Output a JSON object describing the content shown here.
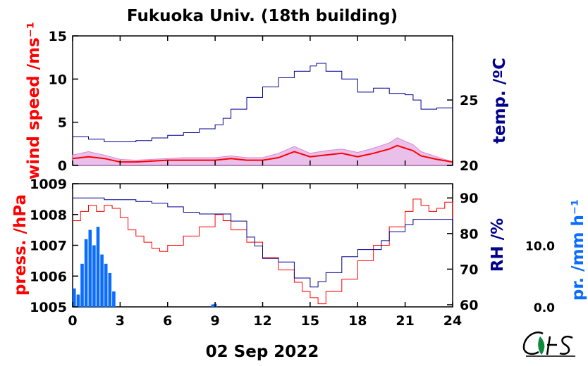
{
  "title": "Fukuoka Univ. (18th building)",
  "date_label": "02 Sep 2022",
  "colors": {
    "wind": "#ff0000",
    "wind_gust": "#d88ad8",
    "temp": "#00008b",
    "press": "#ff0000",
    "rh": "#00008b",
    "precip": "#0a6dff"
  },
  "chart_data": [
    {
      "type": "line",
      "panel": "top",
      "x_range": [
        0,
        24
      ],
      "y_left": {
        "label": "wind speed /ms⁻¹",
        "range": [
          0,
          15
        ],
        "ticks": [
          0,
          5,
          10,
          15
        ],
        "tick_labels": [
          "0",
          "5",
          "10",
          "15"
        ]
      },
      "y_right": {
        "label": "temp. /ºC",
        "range": [
          20,
          29.9
        ],
        "ticks": [
          20,
          25
        ],
        "tick_labels": [
          "20",
          "25"
        ]
      },
      "series": [
        {
          "key": "temp",
          "axis": "right",
          "x": [
            0,
            0.5,
            1,
            2,
            3,
            4,
            5,
            6,
            7,
            8,
            9,
            9.5,
            10,
            11,
            12,
            13,
            14,
            15,
            15.4,
            16,
            17,
            18,
            19,
            20,
            21,
            21.5,
            22,
            22.5,
            23,
            24
          ],
          "y": [
            22.2,
            22.2,
            22.0,
            21.8,
            21.8,
            21.9,
            22.1,
            22.3,
            22.5,
            22.8,
            23.1,
            23.6,
            24.3,
            25.2,
            26.0,
            26.7,
            27.2,
            27.6,
            27.8,
            27.2,
            26.6,
            25.6,
            25.9,
            25.5,
            25.4,
            25.0,
            24.3,
            24.3,
            24.4,
            24.7
          ]
        },
        {
          "key": "wind_gust",
          "axis": "left",
          "x": [
            0,
            1,
            2,
            3,
            4,
            5,
            6,
            7,
            8,
            9,
            10,
            11,
            12,
            13,
            14,
            15,
            16,
            17,
            18,
            19,
            20,
            20.5,
            21,
            21.5,
            22,
            23,
            24
          ],
          "y": [
            1.2,
            1.6,
            1.2,
            0.7,
            0.6,
            0.7,
            0.8,
            0.9,
            0.9,
            0.9,
            1.1,
            0.9,
            0.9,
            1.4,
            2.2,
            1.4,
            1.7,
            1.9,
            1.5,
            2.0,
            2.6,
            3.2,
            2.8,
            2.4,
            1.6,
            1.0,
            0.4
          ]
        },
        {
          "key": "wind",
          "axis": "left",
          "x": [
            0,
            1,
            2,
            3,
            4,
            5,
            6,
            7,
            8,
            9,
            10,
            11,
            12,
            13,
            14,
            15,
            16,
            17,
            18,
            19,
            20,
            20.5,
            21,
            21.5,
            22,
            23,
            24
          ],
          "y": [
            0.8,
            1.0,
            0.8,
            0.4,
            0.4,
            0.5,
            0.6,
            0.6,
            0.6,
            0.6,
            0.8,
            0.6,
            0.6,
            0.9,
            1.6,
            1.0,
            1.2,
            1.4,
            1.0,
            1.4,
            1.9,
            2.3,
            2.0,
            1.7,
            1.1,
            0.7,
            0.4
          ]
        }
      ]
    },
    {
      "type": "line",
      "panel": "bottom",
      "x_range": [
        0,
        24
      ],
      "x_ticks": [
        0,
        3,
        6,
        9,
        12,
        15,
        18,
        21,
        24
      ],
      "x_tick_labels": [
        "0",
        "3",
        "6",
        "9",
        "12",
        "15",
        "18",
        "21",
        "24"
      ],
      "y_left": {
        "label": "press. /hPa",
        "range": [
          1005,
          1009
        ],
        "ticks": [
          1005,
          1006,
          1007,
          1008,
          1009
        ],
        "tick_labels": [
          "1005",
          "1006",
          "1007",
          "1008",
          "1009"
        ]
      },
      "y_right": {
        "label": "RH /%",
        "range": [
          59.4,
          94
        ],
        "ticks": [
          60,
          70,
          80,
          90
        ],
        "tick_labels": [
          "60",
          "70",
          "80",
          "90"
        ]
      },
      "y_far_right": {
        "label": "pr. /mm h⁻¹",
        "range": [
          0,
          20
        ],
        "ticks": [
          0,
          10
        ],
        "tick_labels": [
          "0.0",
          "10.0"
        ]
      },
      "series": [
        {
          "key": "press",
          "axis": "left",
          "x": [
            0,
            0.5,
            1,
            1.5,
            2,
            2.5,
            3,
            3.5,
            4,
            4.5,
            5,
            5.5,
            6,
            7,
            8,
            9,
            9.5,
            10,
            11,
            12,
            13,
            14,
            14.5,
            15,
            15.5,
            16,
            17,
            18,
            19,
            20,
            21,
            21.5,
            22,
            22.5,
            23,
            23.5,
            24
          ],
          "y": [
            1007.8,
            1008.1,
            1008.3,
            1008.1,
            1008.3,
            1008.2,
            1007.9,
            1007.5,
            1007.3,
            1007.1,
            1006.9,
            1006.8,
            1007.0,
            1007.3,
            1007.6,
            1008.0,
            1007.8,
            1007.5,
            1007.1,
            1006.6,
            1006.2,
            1005.8,
            1005.5,
            1005.3,
            1005.1,
            1005.5,
            1005.9,
            1006.5,
            1007.0,
            1007.6,
            1008.1,
            1008.5,
            1008.3,
            1008.1,
            1008.2,
            1008.4,
            1007.8
          ]
        },
        {
          "key": "rh",
          "axis": "right",
          "x": [
            0,
            1,
            2,
            3,
            4,
            5,
            6,
            7,
            8,
            9,
            9.5,
            10,
            11,
            11.5,
            12,
            13,
            14,
            15,
            15.5,
            16,
            17,
            18,
            19,
            19.5,
            20,
            21,
            21.5,
            22,
            23,
            24
          ],
          "y": [
            90.0,
            90.0,
            89.5,
            89.5,
            89.0,
            88.5,
            87.5,
            86.0,
            85.5,
            85.5,
            85.5,
            83.5,
            79.0,
            76.5,
            73.0,
            72.0,
            67.5,
            65.0,
            66.5,
            69.0,
            73.5,
            75.5,
            75.5,
            78.0,
            80.5,
            82.5,
            84.0,
            84.0,
            84.0,
            81.5
          ]
        },
        {
          "key": "precip",
          "axis": "far_right",
          "x": [
            0,
            0.25,
            0.5,
            0.75,
            1,
            1.25,
            1.5,
            1.75,
            2,
            2.25,
            2.5,
            8.75,
            8.9
          ],
          "y": [
            3.0,
            2.0,
            7.0,
            11.0,
            12.5,
            10.0,
            13.0,
            8.5,
            7.0,
            5.5,
            2.5,
            0.4,
            0.5
          ]
        }
      ]
    }
  ]
}
